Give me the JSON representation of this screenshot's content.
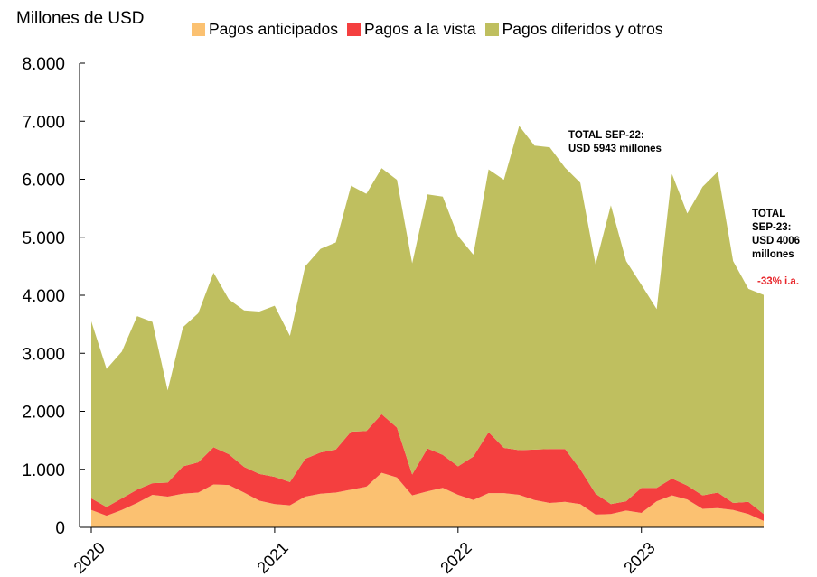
{
  "chart_data": {
    "type": "area",
    "stacked": true,
    "ylabel": "Millones de USD",
    "ylim": [
      0,
      8000
    ],
    "yticks": [
      "0",
      "1.000",
      "2.000",
      "3.000",
      "4.000",
      "5.000",
      "6.000",
      "7.000",
      "8.000"
    ],
    "ytick_values": [
      0,
      1000,
      2000,
      3000,
      4000,
      5000,
      6000,
      7000,
      8000
    ],
    "xtick_labels": [
      "2020",
      "2021",
      "2022",
      "2023"
    ],
    "xtick_index": [
      0,
      12,
      24,
      36
    ],
    "x_start": "2020-01",
    "x_end": "2023-09",
    "legend_position": "top",
    "grid": false,
    "series": [
      {
        "name": "Pagos anticipados",
        "color": "#fbc171",
        "values": [
          300,
          200,
          300,
          420,
          560,
          530,
          580,
          600,
          740,
          730,
          600,
          460,
          400,
          380,
          530,
          580,
          600,
          650,
          700,
          940,
          860,
          550,
          620,
          680,
          560,
          470,
          590,
          590,
          560,
          470,
          420,
          440,
          400,
          220,
          230,
          290,
          250,
          450,
          550,
          480,
          320,
          330,
          300,
          230,
          110
        ]
      },
      {
        "name": "Pagos a la vista",
        "color": "#f43f3f",
        "values": [
          200,
          150,
          200,
          230,
          200,
          240,
          470,
          520,
          640,
          530,
          440,
          460,
          470,
          400,
          650,
          710,
          740,
          1000,
          960,
          1010,
          860,
          360,
          740,
          570,
          490,
          750,
          1050,
          780,
          770,
          870,
          930,
          910,
          600,
          360,
          170,
          160,
          430,
          230,
          290,
          240,
          230,
          270,
          120,
          210,
          120
        ]
      },
      {
        "name": "Pagos diferidos y otros",
        "color": "#bfbf5f",
        "values": [
          3050,
          2380,
          2530,
          2990,
          2780,
          1590,
          2400,
          2570,
          3010,
          2670,
          2700,
          2800,
          2950,
          2520,
          3320,
          3510,
          3570,
          4240,
          4090,
          4240,
          4270,
          3640,
          4380,
          4450,
          3970,
          3480,
          4530,
          4620,
          5590,
          5240,
          5200,
          4850,
          4940,
          3950,
          5150,
          4140,
          3500,
          3080,
          5250,
          4690,
          5320,
          5530,
          4170,
          3670,
          3776
        ]
      }
    ],
    "annotations": [
      {
        "lines": [
          "TOTAL SEP-22:",
          "USD 5943 millones"
        ],
        "color": "#000000"
      },
      {
        "lines": [
          "TOTAL",
          "SEP-23:",
          "USD 4006",
          "millones"
        ],
        "color": "#000000"
      },
      {
        "lines": [
          "-33% i.a."
        ],
        "color": "#e8262b"
      }
    ]
  }
}
